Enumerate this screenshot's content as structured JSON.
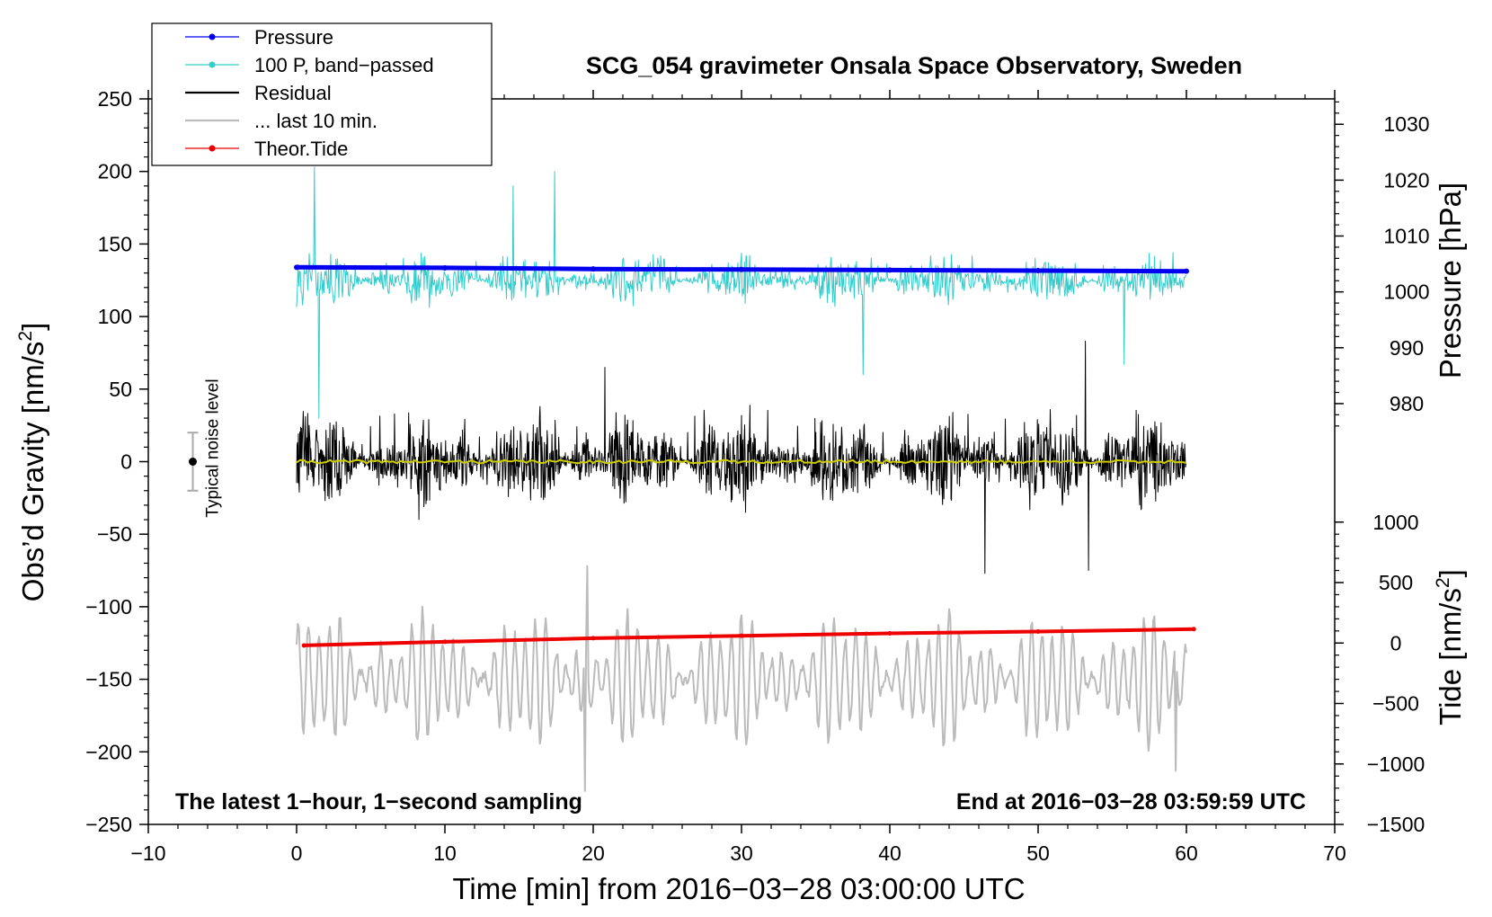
{
  "chart_data": {
    "type": "line",
    "title": "SCG_054 gravimeter Onsala Space Observatory, Sweden",
    "xlabel": "Time [min] from 2016−03−28 03:00:00 UTC",
    "ylabel_left": "Obs’d Gravity [nm/s",
    "ylabel_left_sup": "2",
    "ylabel_left_end": "]",
    "ylabel_right_pressure": "Pressure [hPa]",
    "ylabel_right_tide": "Tide [nm/s",
    "ylabel_right_tide_sup": "2",
    "ylabel_right_tide_end": "]",
    "xlim": [
      -10,
      70
    ],
    "ylim": [
      -250,
      250
    ],
    "x_ticks": [
      -10,
      0,
      10,
      20,
      30,
      40,
      50,
      60,
      70
    ],
    "x_tick_labels": [
      "−10",
      "0",
      "10",
      "20",
      "30",
      "40",
      "50",
      "60",
      "70"
    ],
    "y_ticks": [
      250,
      200,
      150,
      100,
      50,
      0,
      -50,
      -100,
      -150,
      -200,
      -250
    ],
    "y_tick_labels": [
      "250",
      "200",
      "150",
      "100",
      "50",
      "0",
      "−50",
      "−100",
      "−150",
      "−200",
      "−250"
    ],
    "pressure_axis": {
      "ticks": [
        1030,
        1020,
        1010,
        1000,
        990,
        980
      ],
      "tick_labels": [
        "1030",
        "1020",
        "1010",
        "1000",
        "990",
        "980"
      ],
      "map_to_gravity": {
        "value_a": 1000,
        "gravity_a": 117,
        "value_b": 980,
        "gravity_b": 40
      }
    },
    "tide_axis": {
      "ticks": [
        1000,
        500,
        0,
        -500,
        -1000,
        -1500
      ],
      "tick_labels": [
        "1000",
        "500",
        "0",
        "−500",
        "−1000",
        "−1500"
      ],
      "map_to_gravity": {
        "value_a": 0,
        "gravity_a": -125,
        "value_b": -1500,
        "gravity_b": -250
      }
    },
    "legend": [
      {
        "label": "Pressure",
        "color": "#0000ee",
        "style": "line-dot"
      },
      {
        "label": "100 P, band−passed",
        "color": "#33cccc",
        "style": "line-dot"
      },
      {
        "label": "Residual",
        "color": "#000000",
        "style": "line"
      },
      {
        "label": "... last 10 min.",
        "color": "#bbbbbb",
        "style": "line"
      },
      {
        "label": "Theor.Tide",
        "color": "#ee0000",
        "style": "line-dot"
      }
    ],
    "series": [
      {
        "name": "Pressure",
        "color": "#0000ee",
        "axis": "pressure",
        "x": [
          0,
          10,
          20,
          30,
          40,
          50,
          60
        ],
        "values": [
          1004.4,
          1004.3,
          1004.1,
          1004.0,
          1003.9,
          1003.8,
          1003.7
        ]
      },
      {
        "name": "100 P, band−passed",
        "color": "#33cccc",
        "axis": "gravity",
        "center": 125,
        "start_min": 0,
        "end_min": 60,
        "amplitude": 15,
        "peak_x": [
          1.2,
          1.5,
          14.6,
          17.4,
          38.2,
          55.8
        ],
        "peak_values": [
          203,
          30,
          190,
          200,
          60,
          67
        ]
      },
      {
        "name": "Residual",
        "color": "#000000",
        "axis": "gravity",
        "center": 0,
        "start_min": 0,
        "end_min": 60,
        "amplitude": 28,
        "peak_x": [
          20.8,
          46.4,
          53.2,
          53.4
        ],
        "peak_values": [
          65,
          -77,
          83,
          -75
        ]
      },
      {
        "name": "Residual mean",
        "color": "#cccc00",
        "axis": "gravity",
        "x": [
          0,
          60
        ],
        "values": [
          0,
          0
        ]
      },
      {
        "name": "... last 10 min.",
        "color": "#bbbbbb",
        "axis": "gravity",
        "center": -150,
        "start_min": 0,
        "end_min": 60,
        "amplitude": 35,
        "peak_x": [
          19.6,
          19.4,
          59.3
        ],
        "peak_values": [
          -72,
          -227,
          -213
        ]
      },
      {
        "name": "Theor.Tide",
        "color": "#ee0000",
        "axis": "tide",
        "x": [
          0.5,
          10,
          20,
          30,
          40,
          50,
          60.5
        ],
        "values": [
          -20,
          10,
          40,
          60,
          80,
          95,
          115
        ]
      }
    ],
    "noise_bar": {
      "x": -7,
      "center": 0,
      "low": -20,
      "high": 20,
      "label": "Typical noise level"
    },
    "annotations": {
      "bottom_left": "The latest 1−hour, 1−second sampling",
      "bottom_right": "End at 2016−03−28 03:59:59 UTC"
    }
  }
}
